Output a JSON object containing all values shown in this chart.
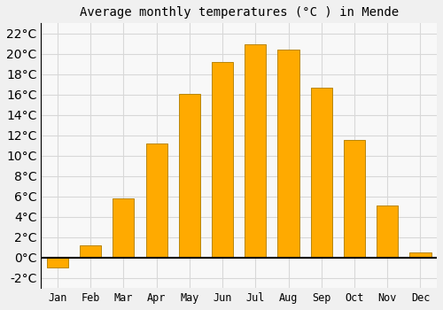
{
  "title": "Average monthly temperatures (°C ) in Mende",
  "months": [
    "Jan",
    "Feb",
    "Mar",
    "Apr",
    "May",
    "Jun",
    "Jul",
    "Aug",
    "Sep",
    "Oct",
    "Nov",
    "Dec"
  ],
  "values": [
    -1.0,
    1.2,
    5.8,
    11.2,
    16.1,
    19.2,
    20.9,
    20.4,
    16.7,
    11.5,
    5.1,
    0.5
  ],
  "bar_color": "#FFAA00",
  "bar_edge_color": "#B8860B",
  "background_color": "#f0f0f0",
  "plot_bg_color": "#f8f8f8",
  "grid_color": "#d8d8d8",
  "ylim": [
    -3,
    23
  ],
  "yticks": [
    -2,
    0,
    2,
    4,
    6,
    8,
    10,
    12,
    14,
    16,
    18,
    20,
    22
  ],
  "title_fontsize": 10,
  "tick_fontsize": 8.5,
  "figsize": [
    5.0,
    3.5
  ],
  "dpi": 100
}
